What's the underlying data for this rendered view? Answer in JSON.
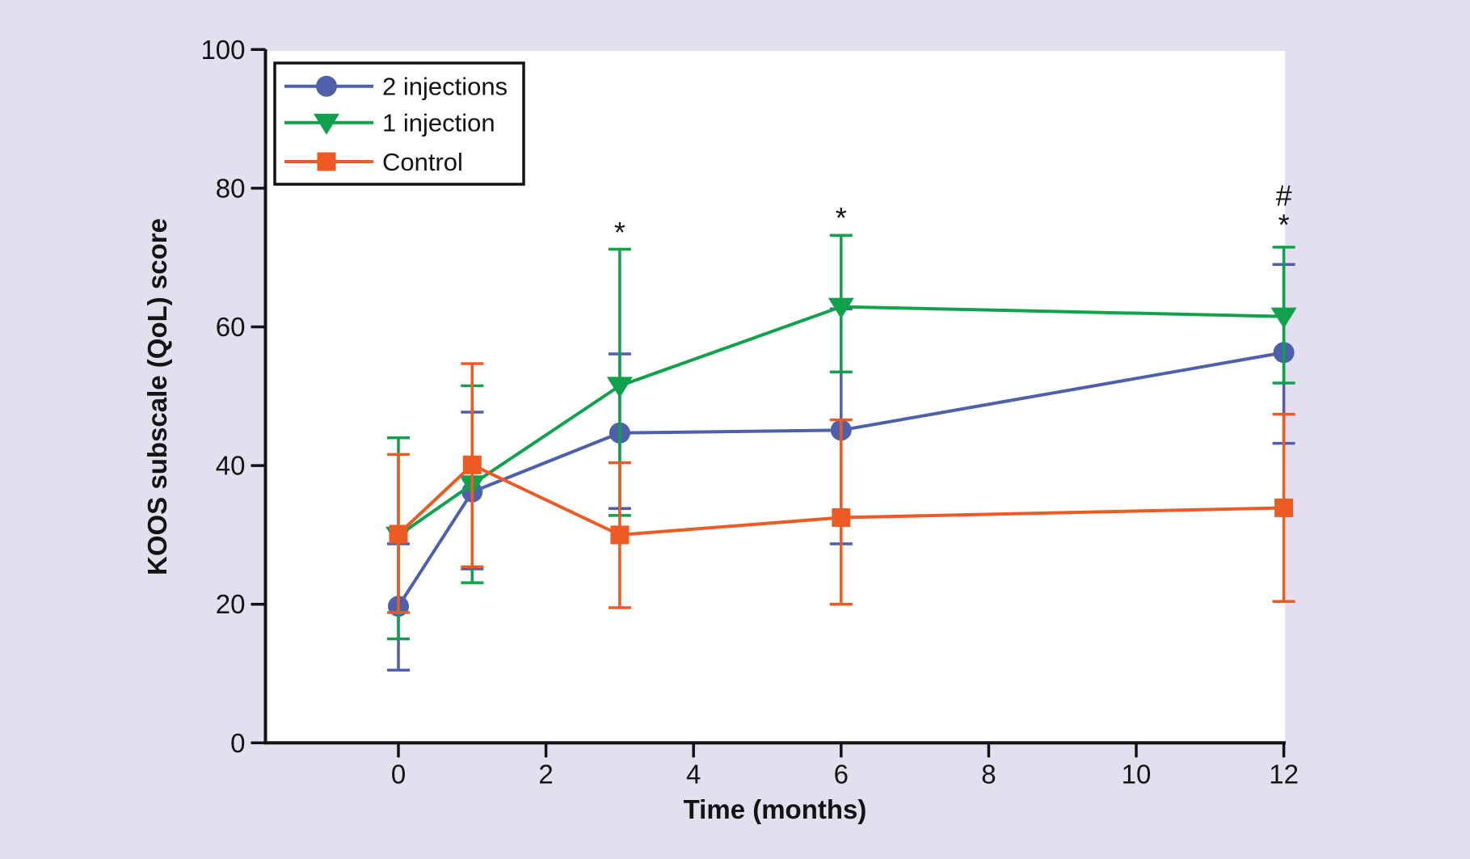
{
  "figure": {
    "background_color": "#e4dfee",
    "plot_background": "#ffffff",
    "axis_color": "#131313"
  },
  "chart_data": {
    "type": "line",
    "title": "",
    "xlabel": "Time (months)",
    "ylabel": "KOOS subscale (QoL) score",
    "x_ticks": [
      0,
      2,
      4,
      6,
      8,
      10,
      12
    ],
    "y_ticks": [
      0,
      20,
      40,
      60,
      80,
      100
    ],
    "xlim": [
      -1.81,
      12.02
    ],
    "ylim": [
      0,
      100
    ],
    "grid": false,
    "legend_position": "top-left",
    "x": [
      0,
      1,
      3,
      6,
      12
    ],
    "series": [
      {
        "name": "2 injections",
        "color": "#4e5fac",
        "marker": "circle",
        "values": [
          19.7,
          36.2,
          44.7,
          45.1,
          56.3
        ],
        "err_low": [
          10.5,
          25.1,
          33.8,
          28.7,
          43.2
        ],
        "err_high": [
          28.7,
          47.7,
          56.1,
          62.6,
          69.0
        ]
      },
      {
        "name": "1 injection",
        "color": "#10a14c",
        "marker": "triangle-down",
        "values": [
          29.9,
          37.3,
          51.5,
          62.9,
          61.5
        ],
        "err_low": [
          15.0,
          23.1,
          32.8,
          53.5,
          51.9
        ],
        "err_high": [
          44.0,
          51.5,
          71.2,
          73.2,
          71.5
        ]
      },
      {
        "name": "Control",
        "color": "#ee5a24",
        "marker": "square",
        "values": [
          30.1,
          40.1,
          30.0,
          32.5,
          33.9
        ],
        "err_low": [
          18.8,
          25.4,
          19.5,
          20.0,
          20.4
        ],
        "err_high": [
          41.6,
          54.7,
          40.4,
          46.6,
          47.4
        ]
      }
    ],
    "annotations": [
      {
        "text": "*",
        "x": 3,
        "y": 73.6
      },
      {
        "text": "*",
        "x": 6,
        "y": 75.7
      },
      {
        "text": "#",
        "x": 12,
        "y": 78.9
      },
      {
        "text": "*",
        "x": 12,
        "y": 74.7
      }
    ]
  }
}
